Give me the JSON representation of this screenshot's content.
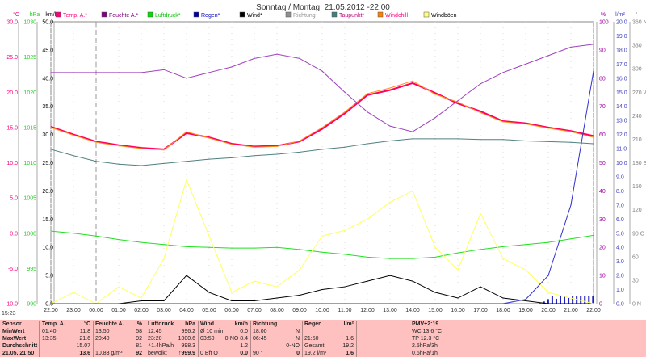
{
  "chart_data": {
    "type": "line",
    "title": "Sonntag / Montag, 21.05.2012 -22:00",
    "legend": [
      {
        "label": "Temp. A.*",
        "color": "#ff0080"
      },
      {
        "label": "Feuchte A.*",
        "color": "#800080"
      },
      {
        "label": "Luftdruck*",
        "color": "#00e000"
      },
      {
        "label": "Regen*",
        "color": "#0000a0"
      },
      {
        "label": "Wind*",
        "color": "#000000"
      },
      {
        "label": "Richtung",
        "color": "#909090"
      },
      {
        "label": "Taupunkt*",
        "color": "#408080"
      },
      {
        "label": "Windchill",
        "color": "#ff8000"
      },
      {
        "label": "Windböen",
        "color": "#ffff80"
      }
    ],
    "legend_text_colors": [
      "#ff0080",
      "#800080",
      "#00c000",
      "#0000c0",
      "#000000",
      "#909090",
      "#c00080",
      "#ff0080",
      "#000000"
    ],
    "x_ticks": [
      "22:00",
      "23:00",
      "00:00",
      "01:00",
      "02:00",
      "03:00",
      "04:00",
      "05:00",
      "06:00",
      "07:00",
      "08:00",
      "09:00",
      "10:00",
      "11:00",
      "12:00",
      "13:00",
      "14:00",
      "15:00",
      "16:00",
      "17:00",
      "18:00",
      "19:00",
      "20:00",
      "21:00",
      "22:00"
    ],
    "axes": {
      "temp": {
        "unit": "°C",
        "range": [
          -10,
          30
        ],
        "ticks": [
          "30.0",
          "25.0",
          "20.0",
          "15.0",
          "10.0",
          "5.0",
          "0.0",
          "-5.0",
          "-10.0"
        ],
        "color": "#ff0080"
      },
      "pressure": {
        "unit": "hPa",
        "range": [
          990,
          1030
        ],
        "ticks": [
          "1030",
          "1025",
          "1020",
          "1015",
          "1010",
          "1005",
          "1000",
          "995",
          "990"
        ],
        "color": "#00e000"
      },
      "wind": {
        "unit": "km/h",
        "range": [
          0,
          50
        ],
        "ticks": [
          "50.0",
          "45.0",
          "40.0",
          "35.0",
          "30.0",
          "25.0",
          "20.0",
          "15.0",
          "10.0",
          "5.0",
          "0.0"
        ],
        "color": "#000000"
      },
      "humidity": {
        "unit": "%",
        "range": [
          0,
          100
        ],
        "ticks": [
          "100",
          "90",
          "80",
          "70",
          "60",
          "50",
          "40",
          "30",
          "20",
          "10",
          "0"
        ],
        "color": "#a000a0"
      },
      "rain": {
        "unit": "l/m²",
        "range": [
          0,
          20
        ],
        "ticks": [
          "20.0",
          "19.0",
          "18.0",
          "17.0",
          "16.0",
          "15.0",
          "14.0",
          "13.0",
          "12.0",
          "11.0",
          "10.0",
          "9.0",
          "8.0",
          "7.0",
          "6.0",
          "5.0",
          "4.0",
          "3.0",
          "2.0",
          "1.0",
          "0.0"
        ],
        "color": "#4040c0"
      },
      "direction": {
        "unit": "°",
        "range": [
          0,
          360
        ],
        "ticks": [
          "360 N",
          "330",
          "300",
          "270 W",
          "240",
          "210",
          "180 S",
          "150",
          "120",
          "90 O",
          "60",
          "30",
          "0 N"
        ],
        "color": "#808080"
      }
    },
    "hours": [
      0,
      1,
      2,
      3,
      4,
      5,
      6,
      7,
      8,
      9,
      10,
      11,
      12,
      13,
      14,
      15,
      16,
      17,
      18,
      19,
      20,
      21,
      22,
      23,
      24
    ],
    "series": [
      {
        "name": "Temp. A.",
        "axis": "temp",
        "color": "#ff0060",
        "values": [
          15.1,
          14.0,
          13.0,
          12.5,
          12.1,
          11.9,
          14.2,
          13.6,
          12.7,
          12.3,
          12.4,
          13.0,
          14.8,
          17.0,
          19.6,
          20.3,
          21.3,
          19.9,
          18.4,
          17.3,
          15.9,
          15.6,
          15.0,
          14.5,
          13.8
        ]
      },
      {
        "name": "Windchill",
        "axis": "temp",
        "color": "#ff9020",
        "values": [
          15.0,
          13.9,
          12.9,
          12.4,
          12.0,
          11.8,
          14.4,
          13.5,
          12.6,
          12.2,
          12.3,
          13.1,
          15.0,
          17.2,
          19.8,
          20.6,
          21.6,
          19.7,
          18.6,
          17.1,
          15.8,
          15.5,
          14.9,
          14.4,
          13.6
        ]
      },
      {
        "name": "Feuchte A.",
        "axis": "humidity",
        "color": "#a040c0",
        "values": [
          82,
          82,
          82,
          82,
          82,
          83,
          80,
          82,
          84,
          87,
          88.5,
          87,
          82.5,
          75,
          68,
          63,
          61,
          66,
          72,
          78,
          82,
          85,
          88,
          91,
          92
        ]
      },
      {
        "name": "Luftdruck",
        "axis": "pressure",
        "color": "#20e020",
        "values": [
          1000.3,
          1000.0,
          999.6,
          999.1,
          998.7,
          998.4,
          998.1,
          998.0,
          997.9,
          997.9,
          998.0,
          997.7,
          997.3,
          997.0,
          996.6,
          996.4,
          996.4,
          996.6,
          997.2,
          997.7,
          998.1,
          998.4,
          998.7,
          999.2,
          999.7
        ]
      },
      {
        "name": "Taupunkt",
        "axis": "temp",
        "color": "#508080",
        "values": [
          11.9,
          11.0,
          10.2,
          9.8,
          9.6,
          9.9,
          10.2,
          10.5,
          10.7,
          11.0,
          11.2,
          11.5,
          11.9,
          12.2,
          12.7,
          13.1,
          13.4,
          13.4,
          13.4,
          13.3,
          13.3,
          13.1,
          13.0,
          12.9,
          12.7
        ]
      },
      {
        "name": "Wind",
        "axis": "wind",
        "color": "#000000",
        "values": [
          0,
          0,
          0,
          0,
          0.5,
          0.5,
          5,
          2,
          0.5,
          0.5,
          1,
          1.5,
          2.5,
          3,
          4,
          5,
          4,
          2,
          1,
          3,
          1,
          0.5,
          0,
          0,
          0
        ]
      },
      {
        "name": "Windböen",
        "axis": "wind",
        "color": "#ffff60",
        "values": [
          0,
          2,
          0,
          3,
          1,
          8,
          22,
          12,
          2,
          4,
          3,
          6,
          12,
          13,
          15,
          18,
          20,
          10,
          6,
          16,
          8,
          6,
          2,
          1,
          0
        ]
      },
      {
        "name": "Regen",
        "axis": "rain",
        "color": "#3030d0",
        "values": [
          0,
          0,
          0,
          0,
          0,
          0,
          0,
          0,
          0,
          0,
          0,
          0,
          0,
          0,
          0,
          0,
          0,
          0,
          0,
          0,
          0,
          0.3,
          2,
          7,
          16.5
        ]
      }
    ]
  },
  "status_time": "15:23",
  "table": {
    "sensor": {
      "header": "Sensor",
      "rows": [
        "MinWert",
        "MaxWert",
        "Durchschnitt",
        "21.05. 21:50"
      ]
    },
    "temp": {
      "header": "Temp. A.",
      "unit": "°C",
      "rows": [
        [
          "01:40",
          "11.8"
        ],
        [
          "13:35",
          "21.6"
        ],
        [
          "",
          "15.07"
        ],
        [
          "",
          "13.6"
        ]
      ]
    },
    "humidity": {
      "header": "Feuchte A.",
      "unit": "%",
      "rows": [
        [
          "13:50",
          "58"
        ],
        [
          "20:40",
          "92"
        ],
        [
          "",
          "81"
        ],
        [
          "10.83 g/m³",
          "92"
        ]
      ]
    },
    "pressure": {
      "header": "Luftdruck",
      "unit": "hPa",
      "rows": [
        [
          "12:45",
          "996.2"
        ],
        [
          "23:20",
          "1000.6"
        ],
        [
          "˄1.4hPa/h",
          "998.3"
        ],
        [
          "bewölkt",
          "↑999.9"
        ]
      ]
    },
    "wind": {
      "header": "Wind",
      "unit": "km/h",
      "rows": [
        [
          "Ø 10 min.",
          "0.0"
        ],
        [
          "03:50",
          "0-NO 8.4"
        ],
        [
          "",
          "1.2"
        ],
        [
          "0 Bft O",
          "0.0"
        ]
      ]
    },
    "direction": {
      "header": "Richtung",
      "unit": "",
      "rows": [
        [
          "18:00",
          "N"
        ],
        [
          "06:45",
          "N"
        ],
        [
          "",
          "0-NO"
        ],
        [
          "90 °",
          "0"
        ]
      ]
    },
    "rain": {
      "header": "Regen",
      "unit": "l/m²",
      "rows": [
        [
          "",
          ""
        ],
        [
          "21:50",
          "1.6"
        ],
        [
          "Gesamt",
          "19.2"
        ],
        [
          "19.2 l/m²",
          "1.6"
        ]
      ]
    },
    "pmv": {
      "header": "PMV+2:19",
      "rows": [
        "WC 13.6 °C",
        "TP 12.3 °C",
        "2.5hPa/3h",
        "0.6hPa/1h"
      ]
    }
  }
}
